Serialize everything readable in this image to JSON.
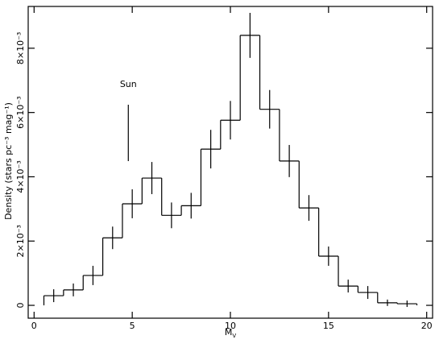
{
  "chart_data": {
    "type": "histogram",
    "xlabel": "M",
    "xlabel_sub": "V",
    "ylabel": "Density (stars pc⁻³ mag⁻¹)",
    "bins": [
      0.5,
      1.5,
      2.5,
      3.5,
      4.5,
      5.5,
      6.5,
      7.5,
      8.5,
      9.5,
      10.5,
      11.5,
      12.5,
      13.5,
      14.5,
      15.5,
      16.5,
      17.5,
      18.5,
      19.5
    ],
    "values": [
      0.0003,
      0.00048,
      0.00093,
      0.0021,
      0.00316,
      0.00396,
      0.0028,
      0.0031,
      0.00486,
      0.00576,
      0.0084,
      0.0061,
      0.00449,
      0.00303,
      0.00153,
      0.0006,
      0.0004,
      8e-05,
      5e-05
    ],
    "errors": [
      0.0002,
      0.0002,
      0.0003,
      0.00035,
      0.00045,
      0.0005,
      0.0004,
      0.0004,
      0.0006,
      0.0006,
      0.0007,
      0.0006,
      0.0005,
      0.0004,
      0.0003,
      0.0002,
      0.0002,
      0.0001,
      0.0001
    ],
    "xlim": [
      -0.3,
      20.3
    ],
    "ylim": [
      -0.0004,
      0.0093
    ],
    "xticks": [
      0,
      5,
      10,
      15,
      20
    ],
    "yticks": [
      {
        "value": 0,
        "label": "0"
      },
      {
        "value": 0.002,
        "label": "2×10⁻³"
      },
      {
        "value": 0.004,
        "label": "4×10⁻³"
      },
      {
        "value": 0.006,
        "label": "6×10⁻³"
      },
      {
        "value": 0.008,
        "label": "8×10⁻³"
      }
    ],
    "annotations": [
      {
        "text": "Sun",
        "x": 4.8
      }
    ]
  }
}
